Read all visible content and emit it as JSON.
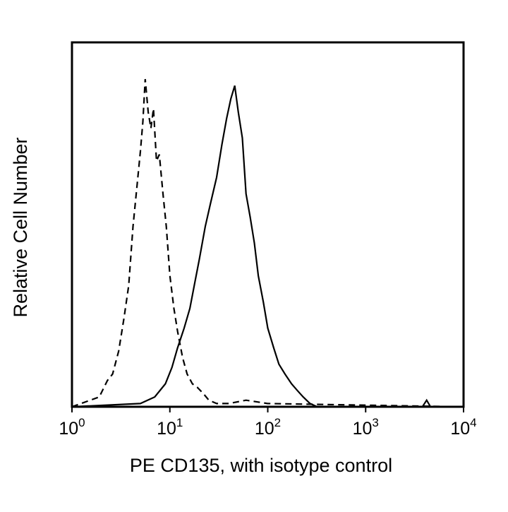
{
  "chart_data": {
    "type": "line",
    "title": "",
    "xlabel": "PE CD135, with isotype control",
    "ylabel": "Relative Cell Number",
    "x_scale": "log",
    "xlim": [
      1,
      10000
    ],
    "ylim": [
      0,
      100
    ],
    "grid": false,
    "legend": "none",
    "x_ticks": [
      {
        "base": "10",
        "exp": "0",
        "value": 1
      },
      {
        "base": "10",
        "exp": "1",
        "value": 10
      },
      {
        "base": "10",
        "exp": "2",
        "value": 100
      },
      {
        "base": "10",
        "exp": "3",
        "value": 1000
      },
      {
        "base": "10",
        "exp": "4",
        "value": 10000
      }
    ],
    "series": [
      {
        "style": "dashed",
        "color": "#000000",
        "x": [
          1,
          1.9,
          2.3,
          2.6,
          3.0,
          3.4,
          3.8,
          4.2,
          4.6,
          5.0,
          5.3,
          5.6,
          6.0,
          6.4,
          6.8,
          7.3,
          7.8,
          8.5,
          9.2,
          10.0,
          11.0,
          12.0,
          13.5,
          15.0,
          17.0,
          19.0,
          22.0,
          25.0,
          30.0,
          40.0,
          60.0,
          100,
          10000
        ],
        "y": [
          0,
          3,
          8,
          10,
          17,
          27,
          37,
          55,
          67,
          78,
          87,
          100,
          90,
          85,
          91,
          75,
          77,
          65,
          55,
          40,
          30,
          23,
          15,
          10,
          7,
          6,
          4,
          2,
          1,
          1,
          2,
          1,
          0
        ]
      },
      {
        "style": "solid",
        "color": "#000000",
        "x": [
          1,
          5.0,
          7.0,
          9.0,
          10.5,
          12.0,
          14.0,
          16.0,
          18.0,
          20.0,
          23.0,
          26.0,
          30.0,
          34.0,
          38.0,
          42.0,
          46.0,
          50.0,
          55.0,
          60.0,
          66.0,
          73.0,
          80.0,
          90.0,
          100,
          115,
          130,
          150,
          175,
          200,
          230,
          270,
          320,
          3800,
          4200,
          4600,
          10000
        ],
        "y": [
          0,
          1,
          3,
          7,
          12,
          18,
          24,
          30,
          38,
          45,
          55,
          62,
          70,
          80,
          88,
          94,
          98,
          90,
          82,
          65,
          58,
          50,
          40,
          32,
          24,
          18,
          13,
          10,
          7,
          5,
          3,
          1,
          0,
          0,
          2,
          0,
          0
        ]
      }
    ]
  }
}
